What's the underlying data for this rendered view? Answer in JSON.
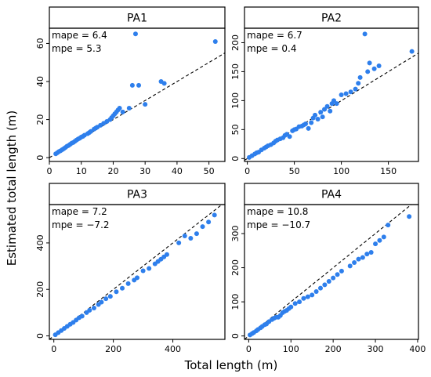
{
  "chart_data": {
    "type": "scatter",
    "xlabel": "Total length (m)",
    "ylabel": "Estimated total length (m)",
    "point_color": "#2e7fec",
    "reference_line": "dashed y = x",
    "panels": [
      {
        "title": "PA1",
        "annotations": [
          "mape = 6.4",
          "mpe = 5.3"
        ],
        "xlim": [
          0,
          55
        ],
        "ylim": [
          -2,
          68
        ],
        "xticks": [
          0,
          10,
          20,
          30,
          40,
          50
        ],
        "yticks": [
          0,
          20,
          40,
          60
        ],
        "x": [
          2,
          2.5,
          3,
          3.5,
          4,
          4.5,
          5,
          5.5,
          6,
          6.5,
          7,
          7.5,
          8,
          8.5,
          9,
          9.5,
          10,
          10.5,
          11,
          12,
          12.5,
          13,
          14,
          14.5,
          15,
          16,
          17,
          18,
          19,
          19.5,
          20,
          20.5,
          21,
          21.5,
          22,
          23,
          25,
          26,
          27,
          28,
          30,
          35,
          36,
          52
        ],
        "y": [
          2,
          2.6,
          3.2,
          3.6,
          4.2,
          4.7,
          5.3,
          6,
          6.4,
          7,
          7.6,
          8,
          8.6,
          9.2,
          9.8,
          10.2,
          10.8,
          11.2,
          11.8,
          12.6,
          13.2,
          13.8,
          15,
          15.5,
          16,
          17,
          18,
          19,
          20,
          21,
          22,
          23,
          24,
          25,
          26,
          24,
          26,
          38,
          65,
          38,
          28,
          40,
          39,
          61
        ]
      },
      {
        "title": "PA2",
        "annotations": [
          "mape = 6.7",
          "mpe = 0.4"
        ],
        "xlim": [
          -3,
          182
        ],
        "ylim": [
          -5,
          225
        ],
        "xticks": [
          0,
          50,
          100,
          150
        ],
        "yticks": [
          0,
          50,
          100,
          150,
          200
        ],
        "x": [
          2,
          5,
          8,
          10,
          12,
          15,
          18,
          20,
          22,
          25,
          28,
          30,
          32,
          35,
          38,
          40,
          42,
          45,
          48,
          50,
          52,
          55,
          58,
          60,
          62,
          65,
          68,
          70,
          72,
          75,
          78,
          80,
          82,
          85,
          88,
          90,
          92,
          95,
          100,
          105,
          110,
          115,
          118,
          120,
          125,
          128,
          130,
          135,
          140,
          175
        ],
        "y": [
          2,
          5,
          8,
          10,
          11,
          15,
          18,
          20,
          22,
          24,
          27,
          30,
          32,
          34,
          36,
          40,
          42,
          38,
          48,
          50,
          51,
          55,
          56,
          58,
          60,
          52,
          62,
          70,
          75,
          68,
          80,
          72,
          85,
          90,
          82,
          95,
          100,
          95,
          110,
          112,
          115,
          120,
          130,
          140,
          215,
          150,
          165,
          155,
          160,
          185
        ]
      },
      {
        "title": "PA3",
        "annotations": [
          "mape = 7.2",
          "mpe = −7.2"
        ],
        "xlim": [
          -15,
          575
        ],
        "ylim": [
          -15,
          565
        ],
        "xticks": [
          0,
          200,
          400
        ],
        "yticks": [
          0,
          200,
          400
        ],
        "x": [
          5,
          15,
          25,
          35,
          45,
          55,
          65,
          75,
          85,
          95,
          110,
          120,
          135,
          150,
          160,
          175,
          190,
          210,
          230,
          250,
          270,
          280,
          300,
          320,
          340,
          350,
          360,
          370,
          380,
          420,
          440,
          460,
          480,
          500,
          520,
          540
        ],
        "y": [
          5,
          14,
          23,
          32,
          41,
          50,
          58,
          68,
          78,
          85,
          100,
          110,
          120,
          135,
          145,
          160,
          170,
          190,
          205,
          225,
          240,
          250,
          280,
          290,
          310,
          320,
          330,
          340,
          350,
          400,
          430,
          420,
          440,
          470,
          490,
          520
        ]
      },
      {
        "title": "PA4",
        "annotations": [
          "mape = 10.8",
          "mpe = −10.7"
        ],
        "xlim": [
          -10,
          402
        ],
        "ylim": [
          -10,
          385
        ],
        "xticks": [
          0,
          100,
          200,
          300,
          400
        ],
        "yticks": [
          0,
          100,
          200,
          300
        ],
        "x": [
          3,
          8,
          12,
          18,
          22,
          28,
          32,
          38,
          42,
          48,
          55,
          60,
          65,
          70,
          75,
          80,
          85,
          90,
          95,
          100,
          110,
          120,
          130,
          140,
          150,
          160,
          170,
          180,
          190,
          200,
          210,
          220,
          240,
          250,
          260,
          270,
          280,
          290,
          300,
          310,
          320,
          330,
          380
        ],
        "y": [
          3,
          7,
          10,
          15,
          19,
          24,
          28,
          33,
          35,
          42,
          48,
          52,
          55,
          55,
          60,
          68,
          72,
          75,
          80,
          85,
          95,
          100,
          110,
          115,
          120,
          130,
          140,
          150,
          160,
          170,
          180,
          190,
          205,
          215,
          225,
          230,
          240,
          245,
          270,
          280,
          290,
          325,
          350
        ]
      }
    ]
  }
}
